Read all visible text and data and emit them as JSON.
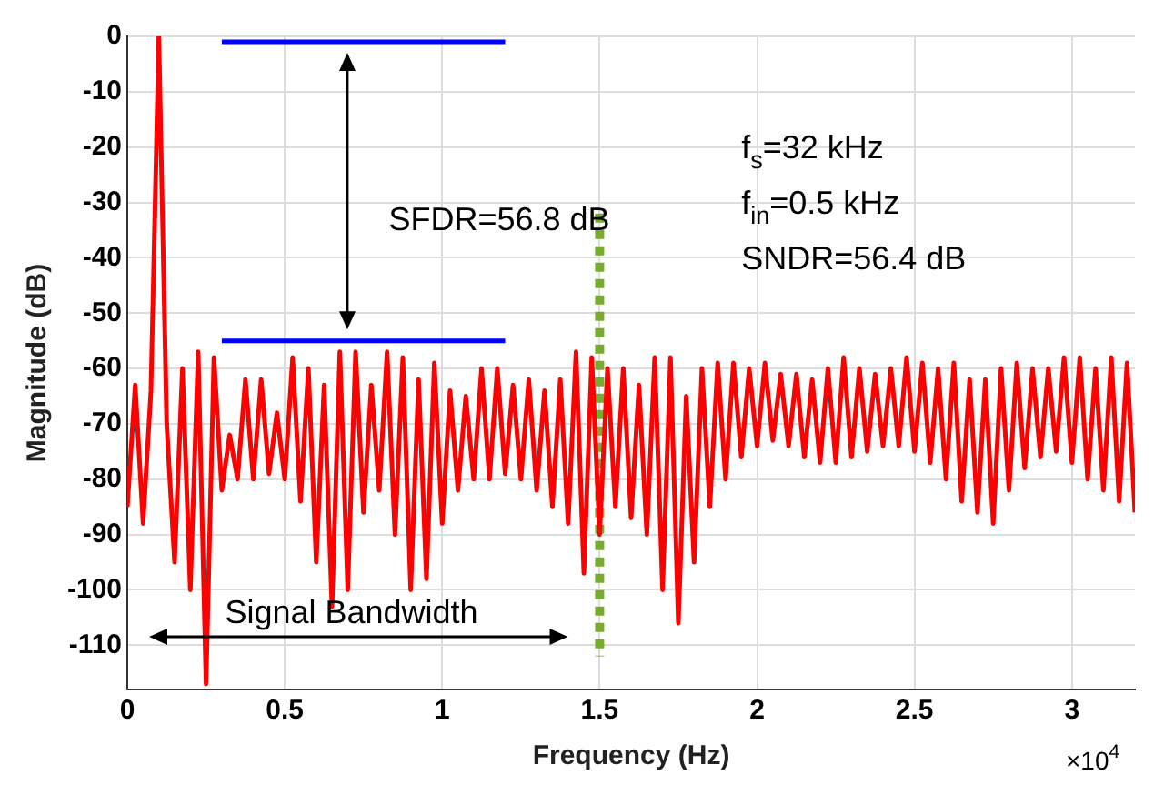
{
  "chart_data": {
    "type": "line",
    "xlabel": "Frequency (Hz)",
    "ylabel": "Magnitude (dB)",
    "xlim": [
      0,
      3.2
    ],
    "ylim": [
      -118,
      0
    ],
    "xticks": [
      0,
      0.5,
      1,
      1.5,
      2,
      2.5,
      3
    ],
    "yticks": [
      0,
      -10,
      -20,
      -30,
      -40,
      -50,
      -60,
      -70,
      -80,
      -90,
      -100,
      -110
    ],
    "grid": true,
    "legend": false,
    "marker": "none",
    "series": [
      {
        "color": "#ff0000",
        "x": [
          0,
          0.025,
          0.05,
          0.075,
          0.1,
          0.125,
          0.15,
          0.175,
          0.2,
          0.225,
          0.25,
          0.275,
          0.3,
          0.325,
          0.35,
          0.375,
          0.4,
          0.425,
          0.45,
          0.475,
          0.5,
          0.525,
          0.55,
          0.575,
          0.6,
          0.625,
          0.65,
          0.675,
          0.7,
          0.725,
          0.75,
          0.775,
          0.8,
          0.825,
          0.85,
          0.875,
          0.9,
          0.925,
          0.95,
          0.975,
          1,
          1.025,
          1.05,
          1.075,
          1.1,
          1.125,
          1.15,
          1.175,
          1.2,
          1.225,
          1.25,
          1.275,
          1.3,
          1.325,
          1.35,
          1.375,
          1.4,
          1.425,
          1.45,
          1.475,
          1.5,
          1.525,
          1.55,
          1.575,
          1.6,
          1.625,
          1.65,
          1.675,
          1.7,
          1.725,
          1.75,
          1.775,
          1.8,
          1.825,
          1.85,
          1.875,
          1.9,
          1.925,
          1.95,
          1.975,
          2,
          2.025,
          2.05,
          2.075,
          2.1,
          2.125,
          2.15,
          2.175,
          2.2,
          2.225,
          2.25,
          2.275,
          2.3,
          2.325,
          2.35,
          2.375,
          2.4,
          2.425,
          2.45,
          2.475,
          2.5,
          2.525,
          2.55,
          2.575,
          2.6,
          2.625,
          2.65,
          2.675,
          2.7,
          2.725,
          2.75,
          2.775,
          2.8,
          2.825,
          2.85,
          2.875,
          2.9,
          2.925,
          2.95,
          2.975,
          3,
          3.025,
          3.05,
          3.075,
          3.1,
          3.125,
          3.15,
          3.175,
          3.2
        ],
        "values": [
          -85,
          -63,
          -88,
          -64,
          0,
          -70,
          -95,
          -60,
          -100,
          -57,
          -117,
          -58,
          -82,
          -72,
          -80,
          -62,
          -80,
          -62,
          -79,
          -68,
          -80,
          -58,
          -84,
          -60,
          -95,
          -63,
          -103,
          -57,
          -100,
          -57,
          -86,
          -63,
          -82,
          -57,
          -90,
          -58,
          -100,
          -62,
          -98,
          -59,
          -88,
          -64,
          -82,
          -65,
          -80,
          -60,
          -80,
          -60,
          -79,
          -63,
          -80,
          -62,
          -82,
          -64,
          -85,
          -62,
          -88,
          -57,
          -97,
          -58,
          -90,
          -60,
          -85,
          -60,
          -87,
          -63,
          -90,
          -58,
          -100,
          -58,
          -106,
          -65,
          -95,
          -60,
          -85,
          -59,
          -80,
          -59,
          -76,
          -60,
          -74,
          -59,
          -73,
          -61,
          -74,
          -61,
          -76,
          -62,
          -77,
          -60,
          -77,
          -58,
          -76,
          -60,
          -75,
          -61,
          -74,
          -60,
          -74,
          -58,
          -75,
          -59,
          -77,
          -60,
          -80,
          -59,
          -84,
          -62,
          -86,
          -62,
          -88,
          -60,
          -82,
          -59,
          -78,
          -60,
          -76,
          -60,
          -75,
          -58,
          -77,
          -58,
          -80,
          -60,
          -82,
          -58,
          -84,
          -59,
          -86
        ]
      },
      {
        "color": "#0000ff",
        "x": [
          0.3,
          1.2
        ],
        "values": [
          -1,
          -1
        ]
      },
      {
        "color": "#0000ff",
        "x": [
          0.3,
          1.2
        ],
        "values": [
          -55,
          -55
        ]
      },
      {
        "color": "#77ac30",
        "x": [
          1.5,
          1.5
        ],
        "values": [
          -32,
          -112
        ],
        "line_style": "dotted"
      }
    ],
    "annotations": [
      "SFDR=56.8 dB",
      "f$_{s}$=32 kHz",
      "f$_{in}$=0.5 kHz",
      "SNDR=56.4 dB",
      "Signal Bandwidth",
      "×10$^{4}$"
    ]
  }
}
